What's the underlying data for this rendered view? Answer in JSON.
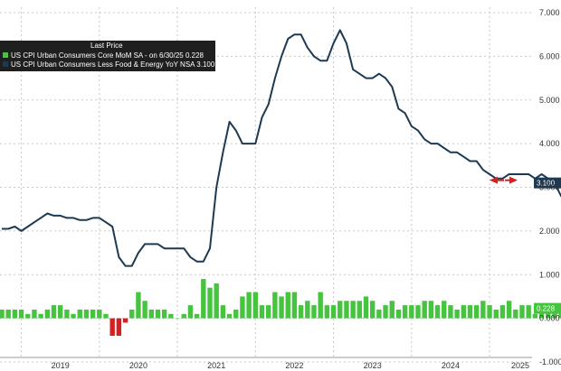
{
  "chart_data": {
    "type": "bar+line",
    "legend": {
      "title": "Last Price",
      "placement": "top-left",
      "entries": [
        {
          "text": "US CPI Urban Consumers Core MoM SA - on 6/30/25 0.228",
          "color": "#47c43f"
        },
        {
          "text": "US CPI Urban Consumers Less Food & Energy YoY NSA 3.100",
          "color": "#1d3a52"
        }
      ]
    },
    "x_axis": {
      "labels": [
        "2019",
        "2020",
        "2021",
        "2022",
        "2023",
        "2024",
        "2025"
      ],
      "start": "2018-10",
      "end": "2025-06"
    },
    "y_axis": {
      "labels": [
        "7.000",
        "6.000",
        "5.000",
        "4.000",
        "3.000",
        "2.000",
        "1.000",
        "0.000",
        "-1.000"
      ],
      "range": [
        -1.0,
        7.0
      ],
      "position": "right",
      "grid": true
    },
    "last_value_tags": [
      {
        "text": "3.100",
        "color": "#1d3a52"
      },
      {
        "text": "0.228",
        "color": "#47c43f"
      }
    ],
    "series": [
      {
        "name": "US CPI Urban Consumers Core MoM SA",
        "type": "bar",
        "color_positive": "#47c43f",
        "color_negative": "#d42020",
        "values": [
          0.2,
          0.2,
          0.2,
          0.2,
          0.1,
          0.2,
          0.1,
          0.2,
          0.3,
          0.3,
          0.2,
          0.1,
          0.2,
          0.2,
          0.2,
          0.2,
          0.1,
          -0.4,
          -0.4,
          -0.1,
          0.2,
          0.6,
          0.4,
          0.2,
          0.2,
          0.2,
          0.1,
          0.0,
          0.1,
          0.3,
          0.1,
          0.9,
          0.7,
          0.8,
          0.3,
          0.1,
          0.2,
          0.5,
          0.6,
          0.6,
          0.3,
          0.3,
          0.6,
          0.5,
          0.6,
          0.6,
          0.3,
          0.4,
          0.3,
          0.6,
          0.3,
          0.3,
          0.4,
          0.4,
          0.4,
          0.4,
          0.5,
          0.4,
          0.2,
          0.3,
          0.4,
          0.2,
          0.3,
          0.3,
          0.3,
          0.4,
          0.4,
          0.3,
          0.4,
          0.3,
          0.2,
          0.3,
          0.3,
          0.3,
          0.4,
          0.3,
          0.2,
          0.3,
          0.4,
          0.2,
          0.3,
          0.3,
          0.1,
          0.2,
          0.3,
          0.3,
          0.3,
          0.3,
          0.4,
          0.4,
          0.2,
          0.3,
          0.3,
          0.3,
          0.2,
          0.2,
          0.3,
          0.4,
          0.3,
          0.4,
          0.4,
          0.3,
          0.3,
          0.4,
          0.4,
          0.3,
          0.2,
          0.2,
          0.1,
          0.3,
          0.2,
          0.3,
          0.4,
          0.3,
          0.3,
          0.4,
          0.3,
          0.2,
          0.1,
          0.2,
          0.1,
          0.2,
          0.1,
          0.1,
          0.228
        ]
      },
      {
        "name": "US CPI Urban Consumers Less Food & Energy YoY NSA",
        "type": "line",
        "color": "#1d3a52",
        "values": [
          2.05,
          2.05,
          2.1,
          2.0,
          2.1,
          2.2,
          2.3,
          2.4,
          2.35,
          2.35,
          2.3,
          2.3,
          2.25,
          2.25,
          2.3,
          2.3,
          2.2,
          2.1,
          1.4,
          1.2,
          1.2,
          1.5,
          1.7,
          1.7,
          1.7,
          1.6,
          1.6,
          1.6,
          1.6,
          1.4,
          1.3,
          1.3,
          1.6,
          3.0,
          3.8,
          4.5,
          4.3,
          4.0,
          4.0,
          4.0,
          4.6,
          4.9,
          5.5,
          6.0,
          6.4,
          6.5,
          6.5,
          6.2,
          6.0,
          5.9,
          5.9,
          6.3,
          6.6,
          6.3,
          5.7,
          5.6,
          5.5,
          5.5,
          5.6,
          5.5,
          5.3,
          4.8,
          4.7,
          4.4,
          4.3,
          4.1,
          4.0,
          4.0,
          3.9,
          3.8,
          3.8,
          3.7,
          3.6,
          3.6,
          3.4,
          3.3,
          3.2,
          3.2,
          3.3,
          3.3,
          3.3,
          3.3,
          3.2,
          3.3,
          3.2,
          3.1,
          2.8,
          2.8,
          2.8,
          2.8,
          2.9,
          3.1
        ]
      }
    ]
  }
}
